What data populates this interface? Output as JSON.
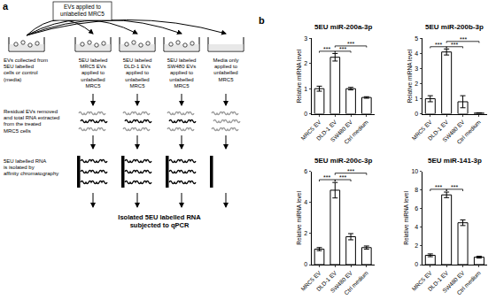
{
  "diagram": {
    "label": "a",
    "arrow_label": [
      "EVs applied to",
      "unlabelled MRC5"
    ],
    "source_label": [
      "EVs collected from",
      "5EU labelled",
      "cells or control",
      "(media)"
    ],
    "columns": [
      [
        "5EU labeled",
        "MRC5 EVs",
        "applied to",
        "unlabelled",
        "MRC5"
      ],
      [
        "5EU labeled",
        "DLD-1 EVs",
        "applied to",
        "unlabelled",
        "MRC5"
      ],
      [
        "5EU labeled",
        "SW480 EVs",
        "applied to",
        "unlabelled",
        "MRC5"
      ],
      [
        "Media only",
        "applied to",
        "unlabelled",
        "MRC5"
      ]
    ],
    "step2": [
      "Residual EVs removed",
      "and total RNA extracted",
      "from the treated",
      "MRC5 cells"
    ],
    "step3": [
      "5EU labelled RNA",
      "is isolated by",
      "affinity chromatography"
    ],
    "result": [
      "Isolated 5EU labelled RNA",
      "subjected to qPCR"
    ]
  },
  "charts_label": "b",
  "chart_data": [
    {
      "type": "bar",
      "title": "5EU miR-200a-3p",
      "ylabel": "Relative miRNA level",
      "categories": [
        "MRC5 EV",
        "DLD-1 EV",
        "SW480 EV",
        "Ctrl medium"
      ],
      "values": [
        1.0,
        2.25,
        1.0,
        0.65
      ],
      "errors": [
        0.1,
        0.15,
        0.05,
        0.03
      ],
      "color": "#ffffff",
      "ylim": [
        0,
        3
      ],
      "yticks": [
        0,
        1,
        2,
        3
      ],
      "significance": [
        {
          "from": 0,
          "to": 1,
          "label": "***"
        },
        {
          "from": 1,
          "to": 2,
          "label": "***"
        },
        {
          "from": 1,
          "to": 3,
          "label": "***"
        }
      ]
    },
    {
      "type": "bar",
      "title": "5EU miR-200b-3p",
      "ylabel": "Relative miRNA level",
      "categories": [
        "MRC5 EV",
        "DLD-1 EV",
        "SW480 EV",
        "Ctrl medium"
      ],
      "values": [
        1.0,
        4.1,
        0.8,
        0.05
      ],
      "errors": [
        0.2,
        0.2,
        0.4,
        0.02
      ],
      "color": "#ffffff",
      "ylim": [
        0,
        5
      ],
      "yticks": [
        0,
        1,
        2,
        3,
        4,
        5
      ],
      "significance": [
        {
          "from": 0,
          "to": 1,
          "label": "***"
        },
        {
          "from": 1,
          "to": 2,
          "label": "***"
        },
        {
          "from": 1,
          "to": 3,
          "label": "***"
        }
      ]
    },
    {
      "type": "bar",
      "title": "5EU miR-200c-3p",
      "ylabel": "Relative miRNA level",
      "categories": [
        "MRC5 EV",
        "DLD-1 EV",
        "SW480 EV",
        "Ctrl medium"
      ],
      "values": [
        1.0,
        4.8,
        1.8,
        1.1
      ],
      "errors": [
        0.1,
        0.5,
        0.2,
        0.1
      ],
      "color": "#ffffff",
      "ylim": [
        0,
        6
      ],
      "yticks": [
        0,
        2,
        4,
        6
      ],
      "significance": [
        {
          "from": 0,
          "to": 1,
          "label": "***"
        },
        {
          "from": 1,
          "to": 2,
          "label": "***"
        },
        {
          "from": 1,
          "to": 3,
          "label": "***"
        }
      ]
    },
    {
      "type": "bar",
      "title": "5EU miR-141-3p",
      "ylabel": "Relative miRNA level",
      "categories": [
        "MRC5 EV",
        "DLD-1 EV",
        "SW480 EV",
        "Ctrl medium"
      ],
      "values": [
        1.0,
        7.5,
        4.5,
        0.8
      ],
      "errors": [
        0.15,
        0.3,
        0.3,
        0.1
      ],
      "color": "#ffffff",
      "ylim": [
        0,
        10
      ],
      "yticks": [
        0,
        2,
        4,
        6,
        8,
        10
      ],
      "significance": [
        {
          "from": 0,
          "to": 1,
          "label": "***"
        },
        {
          "from": 1,
          "to": 2,
          "label": "***"
        }
      ]
    }
  ]
}
